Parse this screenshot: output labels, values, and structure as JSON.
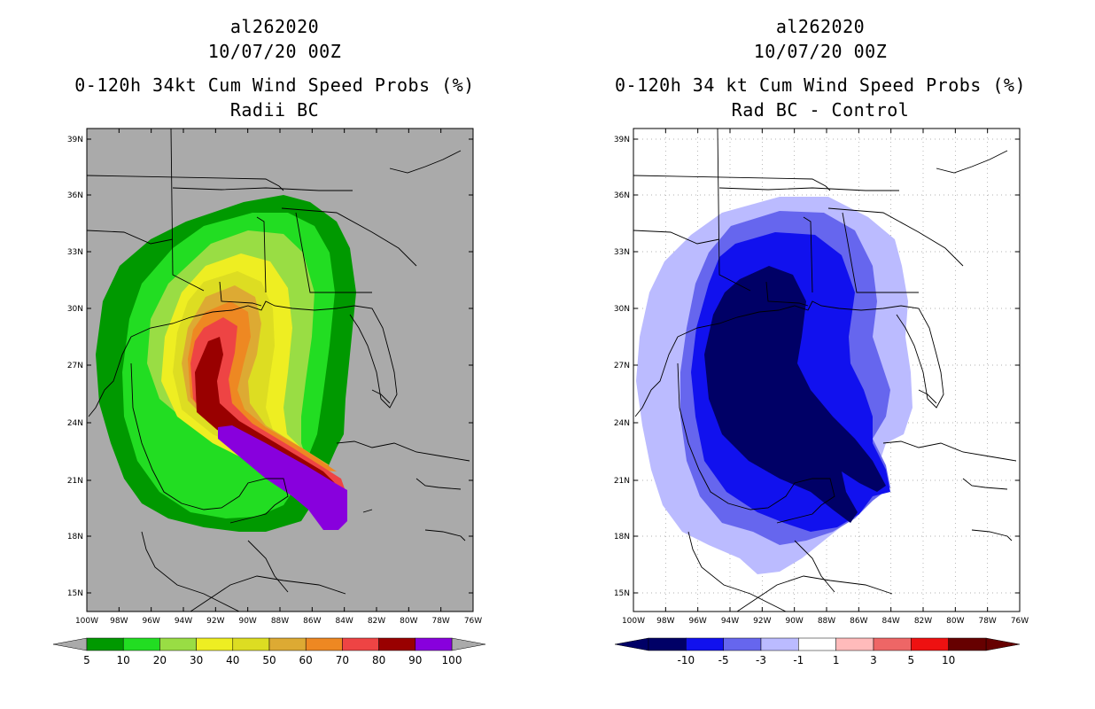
{
  "left": {
    "title_lines": [
      "al262020",
      "10/07/20 00Z",
      "0-120h 34kt Cum Wind Speed Probs (%)",
      "Radii BC"
    ],
    "background_color": "#aaaaaa",
    "lat_labels": [
      "39N",
      "36N",
      "33N",
      "30N",
      "27N",
      "24N",
      "21N",
      "18N",
      "15N"
    ],
    "lon_labels": [
      "100W",
      "98W",
      "96W",
      "94W",
      "92W",
      "90W",
      "88W",
      "86W",
      "84W",
      "82W",
      "80W",
      "78W",
      "76W"
    ],
    "colorbar": {
      "colors": [
        "#009900",
        "#22dd22",
        "#99dd44",
        "#eeee22",
        "#dddd22",
        "#ddaa33",
        "#ee8822",
        "#ee4444",
        "#990000",
        "#8800dd"
      ],
      "labels": [
        "5",
        "10",
        "20",
        "30",
        "40",
        "50",
        "60",
        "70",
        "80",
        "90",
        "100"
      ]
    },
    "contour_colors": {
      "p5": "#009900",
      "p10": "#22dd22",
      "p20": "#99dd44",
      "p30": "#eeee22",
      "p40": "#dddd22",
      "p50": "#ddaa33",
      "p60": "#ee8822",
      "p70": "#ee4444",
      "p80": "#990000",
      "p100": "#8800dd"
    }
  },
  "right": {
    "title_lines": [
      "al262020",
      "10/07/20 00Z",
      "0-120h 34 kt Cum Wind Speed Probs (%)",
      "Rad BC - Control"
    ],
    "background_color": "#ffffff",
    "lat_labels": [
      "39N",
      "36N",
      "33N",
      "30N",
      "27N",
      "24N",
      "21N",
      "18N",
      "15N"
    ],
    "lon_labels": [
      "100W",
      "98W",
      "96W",
      "94W",
      "92W",
      "90W",
      "88W",
      "86W",
      "84W",
      "82W",
      "80W",
      "78W",
      "76W"
    ],
    "colorbar": {
      "colors": [
        "#000066",
        "#1111ee",
        "#6666ee",
        "#bbbbff",
        "#ffffff",
        "#ffbbbb",
        "#ee6666",
        "#ee1111",
        "#660000"
      ],
      "labels": [
        "-10",
        "-5",
        "-3",
        "-1",
        "1",
        "3",
        "5",
        "10"
      ]
    },
    "contour_colors": {
      "n1": "#bbbbff",
      "n3": "#6666ee",
      "n5": "#1111ee",
      "n10": "#000066"
    }
  }
}
